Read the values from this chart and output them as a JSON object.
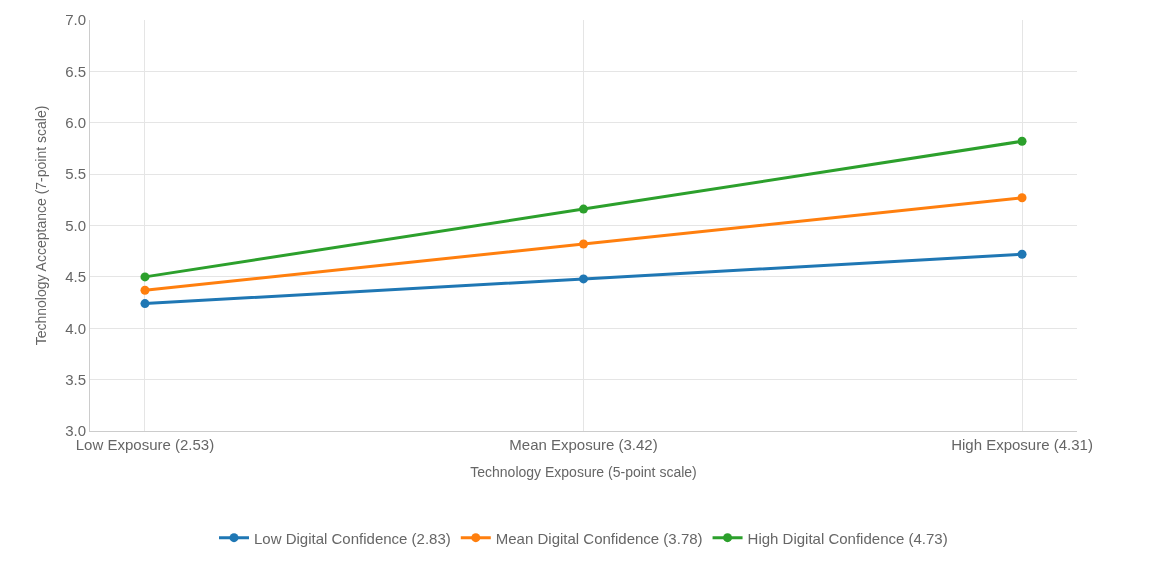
{
  "chart_data": {
    "type": "line",
    "xlabel": "Technology Exposure (5-point scale)",
    "ylabel": "Technology Acceptance (7-point scale)",
    "categories": [
      "Low Exposure (2.53)",
      "Mean Exposure (3.42)",
      "High Exposure (4.31)"
    ],
    "series": [
      {
        "name": "Low Digital Confidence (2.83)",
        "color": "#1f77b4",
        "values": [
          4.24,
          4.48,
          4.72
        ]
      },
      {
        "name": "Mean Digital Confidence (3.78)",
        "color": "#ff7f0e",
        "values": [
          4.37,
          4.82,
          5.27
        ]
      },
      {
        "name": "High Digital Confidence (4.73)",
        "color": "#2ca02c",
        "values": [
          4.5,
          5.16,
          5.82
        ]
      }
    ],
    "ylim": [
      3.0,
      7.0
    ],
    "yticks": [
      {
        "value": 3,
        "label": "3.0"
      },
      {
        "value": 3.5,
        "label": "3.5"
      },
      {
        "value": 4,
        "label": "4.0"
      },
      {
        "value": 4.5,
        "label": "4.5"
      },
      {
        "value": 5,
        "label": "5.0"
      },
      {
        "value": 5.5,
        "label": "5.5"
      },
      {
        "value": 6,
        "label": "6.0"
      },
      {
        "value": 6.5,
        "label": "6.5"
      },
      {
        "value": 7,
        "label": "7.0"
      }
    ],
    "grid": true,
    "legend": "bottom",
    "marker": "circle",
    "line_style": "solid"
  }
}
